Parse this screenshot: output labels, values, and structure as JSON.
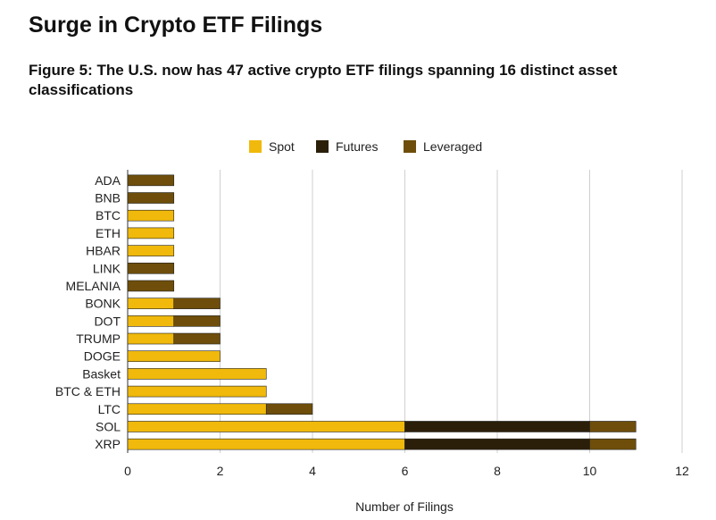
{
  "header": {
    "title": "Surge in Crypto ETF Filings",
    "subtitle": "Figure 5: The U.S. now has 47 active crypto ETF filings spanning 16 distinct asset classifications"
  },
  "chart_data": {
    "type": "bar",
    "orientation": "horizontal",
    "stacked": true,
    "categories": [
      "ADA",
      "BNB",
      "BTC",
      "ETH",
      "HBAR",
      "LINK",
      "MELANIA",
      "BONK",
      "DOT",
      "TRUMP",
      "DOGE",
      "Basket",
      "BTC & ETH",
      "LTC",
      "SOL",
      "XRP"
    ],
    "series": [
      {
        "name": "Spot",
        "color": "#F0B90B",
        "values": [
          0,
          0,
          1,
          1,
          1,
          0,
          0,
          1,
          1,
          1,
          2,
          3,
          3,
          3,
          6,
          6
        ]
      },
      {
        "name": "Futures",
        "color": "#2B1F0A",
        "values": [
          0,
          0,
          0,
          0,
          0,
          0,
          0,
          0,
          0,
          0,
          0,
          0,
          0,
          0,
          4,
          4
        ]
      },
      {
        "name": "Leveraged",
        "color": "#6E4E0A",
        "values": [
          1,
          1,
          0,
          0,
          0,
          1,
          1,
          1,
          1,
          1,
          0,
          0,
          0,
          1,
          1,
          1
        ]
      }
    ],
    "xlabel": "Number of Filings",
    "xlim": [
      0,
      12
    ],
    "xticks": [
      0,
      2,
      4,
      6,
      8,
      10,
      12
    ],
    "grid": "vertical",
    "legend": "top-center"
  }
}
